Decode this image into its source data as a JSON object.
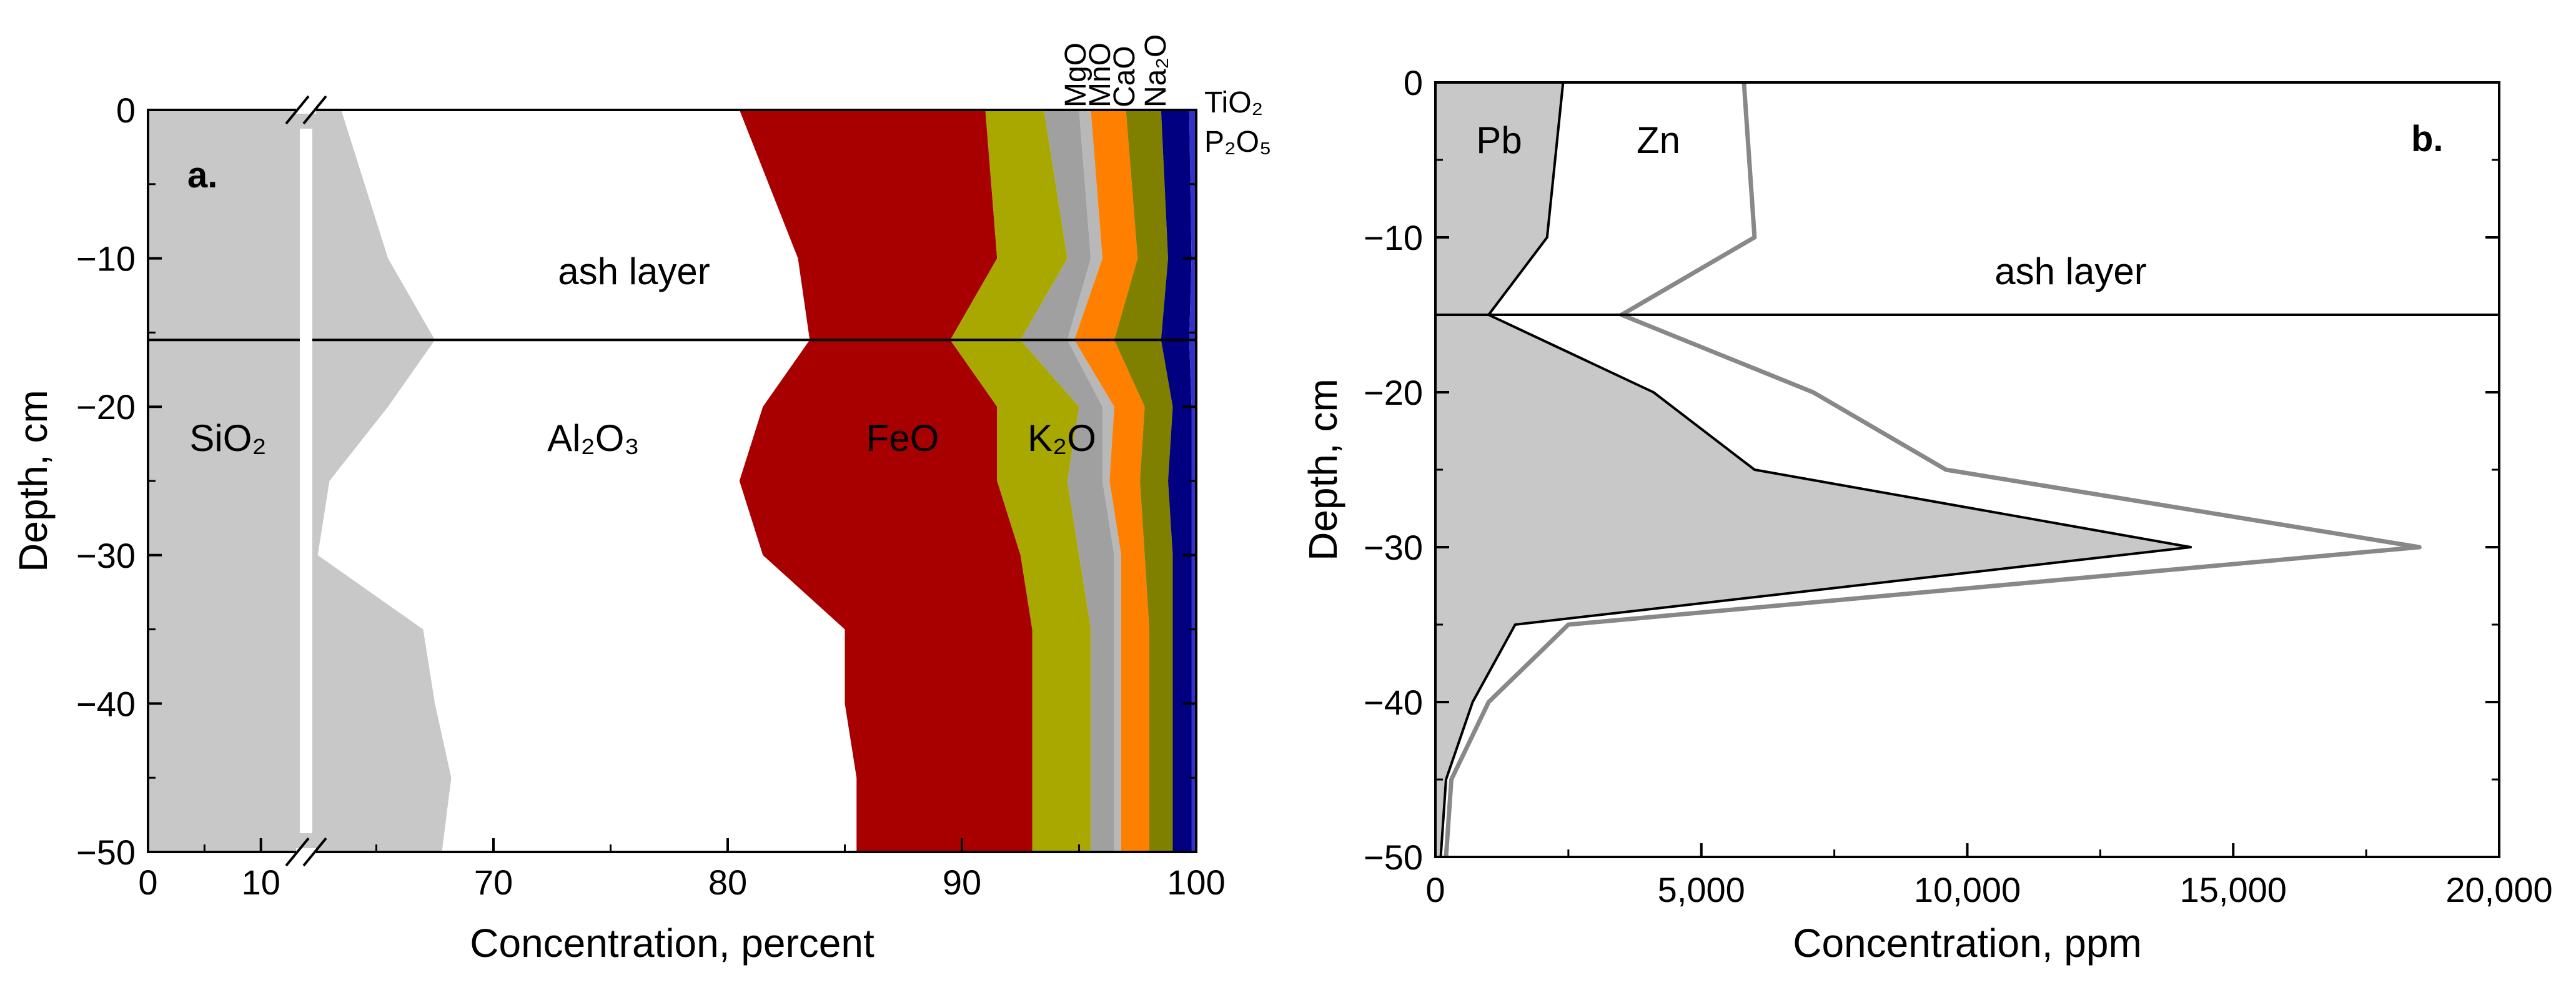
{
  "chart_data": [
    {
      "type": "area",
      "panel_label": "a.",
      "xlabel": "Concentration, percent",
      "ylabel": "Depth, cm",
      "xlim": [
        0,
        100
      ],
      "x_axis_break": {
        "from": 14,
        "to": 62
      },
      "x_ticks": [
        0,
        10,
        70,
        80,
        90,
        100
      ],
      "x_tick_labels": [
        "0",
        "10",
        "70",
        "80",
        "90",
        "100"
      ],
      "ylim": [
        -50,
        0
      ],
      "y_ticks": [
        0,
        -10,
        -20,
        -30,
        -40,
        -50
      ],
      "y_tick_labels": [
        "0",
        "−10",
        "−20",
        "−30",
        "−40",
        "−50"
      ],
      "annotation": "ash layer",
      "ash_layer_depth": -15.5,
      "depths": [
        0,
        -10,
        -15.5,
        -20,
        -25,
        -30,
        -35,
        -40,
        -45,
        -50
      ],
      "component_labels": {
        "SiO2": "SiO₂",
        "Al2O3": "Al₂O₃",
        "FeO": "FeO",
        "K2O": "K₂O",
        "MgO": "MgO",
        "MnO": "MnO",
        "CaO": "CaO",
        "Na2O": "Na₂O",
        "TiO2": "TiO₂",
        "P2O5": "P₂O₅"
      },
      "series": [
        {
          "name": "SiO₂",
          "color": "#c8c8c8",
          "cumulative_upper": [
            63.5,
            65.5,
            67.5,
            65.5,
            63.0,
            62.5,
            67.0,
            67.5,
            68.2,
            67.8
          ]
        },
        {
          "name": "Al₂O₃",
          "color": "#ffffff",
          "cumulative_upper": [
            80.5,
            83.0,
            83.5,
            81.5,
            80.5,
            81.5,
            85.0,
            85.0,
            85.5,
            85.5
          ]
        },
        {
          "name": "FeO",
          "color": "#a80000",
          "cumulative_upper": [
            91.0,
            91.5,
            89.5,
            91.5,
            91.5,
            92.5,
            93.0,
            93.0,
            93.0,
            93.0
          ]
        },
        {
          "name": "K₂O",
          "color": "#a8a800",
          "cumulative_upper": [
            93.5,
            94.5,
            92.5,
            95.0,
            94.5,
            95.0,
            95.5,
            95.5,
            95.5,
            95.5
          ]
        },
        {
          "name": "MgO",
          "color": "#a0a0a0",
          "cumulative_upper": [
            95.0,
            95.5,
            94.5,
            96.0,
            96.0,
            96.5,
            96.5,
            96.5,
            96.5,
            96.5
          ]
        },
        {
          "name": "MnO",
          "color": "#b8b8b8",
          "cumulative_upper": [
            95.5,
            96.0,
            94.8,
            96.5,
            96.3,
            96.8,
            96.8,
            96.8,
            96.8,
            96.8
          ]
        },
        {
          "name": "CaO",
          "color": "#ff8000",
          "cumulative_upper": [
            97.0,
            97.5,
            96.5,
            97.8,
            97.6,
            97.8,
            98.0,
            98.0,
            98.0,
            98.0
          ]
        },
        {
          "name": "Na₂O",
          "color": "#808000",
          "cumulative_upper": [
            98.5,
            98.8,
            98.5,
            99.0,
            98.8,
            99.0,
            99.0,
            99.0,
            99.0,
            99.0
          ]
        },
        {
          "name": "TiO₂",
          "color": "#000080",
          "cumulative_upper": [
            99.7,
            99.8,
            99.7,
            99.8,
            99.8,
            99.8,
            99.8,
            99.8,
            99.8,
            99.8
          ]
        },
        {
          "name": "P₂O₅",
          "color": "#3232c8",
          "cumulative_upper": [
            100,
            100,
            100,
            100,
            100,
            100,
            100,
            100,
            100,
            100
          ]
        }
      ]
    },
    {
      "type": "area",
      "panel_label": "b.",
      "xlabel": "Concentration, ppm",
      "ylabel": "Depth, cm",
      "xlim": [
        0,
        20000
      ],
      "x_ticks": [
        0,
        5000,
        10000,
        15000,
        20000
      ],
      "x_tick_labels": [
        "0",
        "5,000",
        "10,000",
        "15,000",
        "20,000"
      ],
      "ylim": [
        -50,
        0
      ],
      "y_ticks": [
        0,
        -10,
        -20,
        -30,
        -40,
        -50
      ],
      "y_tick_labels": [
        "0",
        "−10",
        "−20",
        "−30",
        "−40",
        "−50"
      ],
      "annotation": "ash layer",
      "ash_layer_depth": -15,
      "series": [
        {
          "name": "Pb",
          "color": "#c8c8c8",
          "line_color": "#000000",
          "depths": [
            0,
            -10,
            -15,
            -20,
            -25,
            -30,
            -35,
            -40,
            -45,
            -50
          ],
          "values": [
            2400,
            2100,
            1000,
            4100,
            6000,
            14200,
            1500,
            700,
            200,
            100
          ]
        },
        {
          "name": "Zn",
          "color": "#ffffff",
          "line_color": "#888888",
          "depths": [
            0,
            -10,
            -15,
            -20,
            -25,
            -30,
            -35,
            -40,
            -45,
            -50
          ],
          "values": [
            5800,
            6000,
            3500,
            7100,
            9600,
            18500,
            2500,
            1000,
            300,
            200
          ]
        }
      ]
    }
  ]
}
